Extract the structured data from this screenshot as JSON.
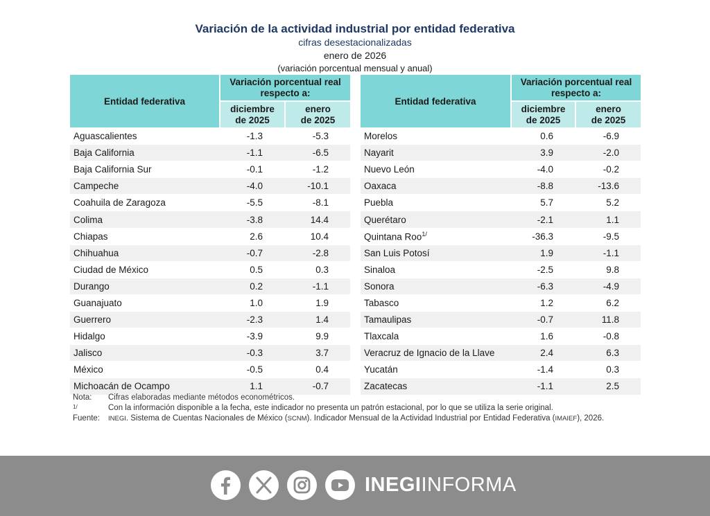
{
  "header": {
    "title": "Variación de la actividad industrial por entidad federativa",
    "subtitle": "cifras desestacionalizadas",
    "period": "enero de 2026",
    "note": "(variación porcentual mensual y anual)"
  },
  "table": {
    "col_entity": "Entidad federativa",
    "col_group_line1": "Variación porcentual real",
    "col_group_line2": "respecto a:",
    "col_dec_line1": "diciembre",
    "col_dec_line2": "de 2025",
    "col_jan_line1": "enero",
    "col_jan_line2": "de 2025",
    "left_rows": [
      {
        "name": "Aguascalientes",
        "dec": "-1.3",
        "jan": "-5.3"
      },
      {
        "name": "Baja California",
        "dec": "-1.1",
        "jan": "-6.5"
      },
      {
        "name": "Baja California Sur",
        "dec": "-0.1",
        "jan": "-1.2"
      },
      {
        "name": "Campeche",
        "dec": "-4.0",
        "jan": "-10.1"
      },
      {
        "name": "Coahuila de Zaragoza",
        "dec": "-5.5",
        "jan": "-8.1"
      },
      {
        "name": "Colima",
        "dec": "-3.8",
        "jan": "14.4"
      },
      {
        "name": "Chiapas",
        "dec": "2.6",
        "jan": "10.4"
      },
      {
        "name": "Chihuahua",
        "dec": "-0.7",
        "jan": "-2.8"
      },
      {
        "name": "Ciudad de México",
        "dec": "0.5",
        "jan": "0.3"
      },
      {
        "name": "Durango",
        "dec": "0.2",
        "jan": "-1.1"
      },
      {
        "name": "Guanajuato",
        "dec": "1.0",
        "jan": "1.9"
      },
      {
        "name": "Guerrero",
        "dec": "-2.3",
        "jan": "1.4"
      },
      {
        "name": "Hidalgo",
        "dec": "-3.9",
        "jan": "9.9"
      },
      {
        "name": "Jalisco",
        "dec": "-0.3",
        "jan": "3.7"
      },
      {
        "name": "México",
        "dec": "-0.5",
        "jan": "0.4"
      },
      {
        "name": "Michoacán de Ocampo",
        "dec": "1.1",
        "jan": "-0.7"
      }
    ],
    "right_rows": [
      {
        "name": "Morelos",
        "dec": "0.6",
        "jan": "-6.9"
      },
      {
        "name": "Nayarit",
        "dec": "3.9",
        "jan": "-2.0"
      },
      {
        "name": "Nuevo León",
        "dec": "-4.0",
        "jan": "-0.2"
      },
      {
        "name": "Oaxaca",
        "dec": "-8.8",
        "jan": "-13.6"
      },
      {
        "name": "Puebla",
        "dec": "5.7",
        "jan": "5.2"
      },
      {
        "name": "Querétaro",
        "dec": "-2.1",
        "jan": "1.1"
      },
      {
        "name": "Quintana Roo",
        "sup": "1/",
        "dec": "-36.3",
        "jan": "-9.5"
      },
      {
        "name": "San Luis Potosí",
        "dec": "1.9",
        "jan": "-1.1"
      },
      {
        "name": "Sinaloa",
        "dec": "-2.5",
        "jan": "9.8"
      },
      {
        "name": "Sonora",
        "dec": "-6.3",
        "jan": "-4.9"
      },
      {
        "name": "Tabasco",
        "dec": "1.2",
        "jan": "6.2"
      },
      {
        "name": "Tamaulipas",
        "dec": "-0.7",
        "jan": "11.8"
      },
      {
        "name": "Tlaxcala",
        "dec": "1.6",
        "jan": "-0.8"
      },
      {
        "name": "Veracruz de Ignacio de la Llave",
        "dec": "2.4",
        "jan": "6.3"
      },
      {
        "name": "Yucatán",
        "dec": "-1.4",
        "jan": "0.3"
      },
      {
        "name": "Zacatecas",
        "dec": "-1.1",
        "jan": "2.5"
      }
    ]
  },
  "notes": {
    "nota_label": "Nota:",
    "nota_text": "Cifras elaboradas mediante métodos econométricos.",
    "fn_label": "1/",
    "fn_text": "Con la información disponible a la fecha, este indicador no presenta un patrón estacional, por lo que se utiliza la serie original.",
    "fuente_label": "Fuente:",
    "fuente_inegi": "INEGI",
    "fuente_a": ". Sistema de Cuentas Nacionales de México (",
    "fuente_scnm": "SCNM",
    "fuente_b": "). Indicador Mensual de la Actividad Industrial por Entidad Federativa (",
    "fuente_imaief": "IMAIEF",
    "fuente_c": "), 2026."
  },
  "footer": {
    "brand_bold": "INEGI",
    "brand_light": "INFORMA",
    "icons": [
      "facebook-icon",
      "x-icon",
      "instagram-icon",
      "youtube-icon"
    ],
    "bar_color": "#8c8c8c"
  },
  "colors": {
    "header_main": "#7fd6d6",
    "header_sub": "#bfeaea",
    "title": "#1f3864",
    "stripe": "#f0f0f0"
  }
}
